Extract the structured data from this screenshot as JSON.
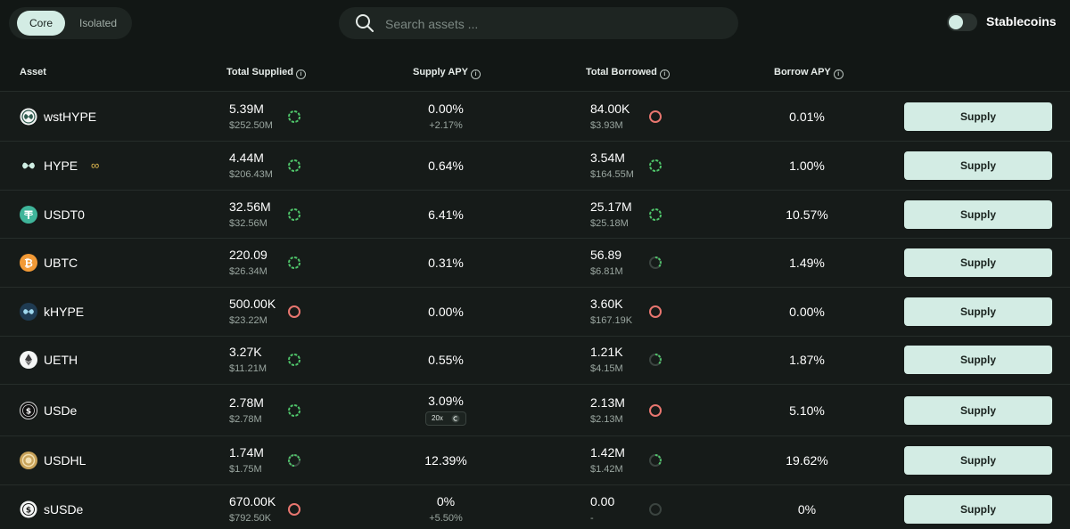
{
  "tabs": {
    "core": "Core",
    "isolated": "Isolated"
  },
  "search": {
    "placeholder": "Search assets ..."
  },
  "stablecoins_label": "Stablecoins",
  "columns": {
    "asset": "Asset",
    "total_supplied": "Total Supplied",
    "supply_apy": "Supply APY",
    "total_borrowed": "Total Borrowed",
    "borrow_apy": "Borrow APY"
  },
  "info_glyph": "i",
  "rows": [
    {
      "name": "wstHYPE",
      "supplied": "5.39M",
      "supplied_usd": "$252.50M",
      "supply_apy": "0.00%",
      "supply_apy_extra": "+2.17%",
      "borrowed": "84.00K",
      "borrowed_usd": "$3.93M",
      "borrow_apy": "0.01%",
      "button": "Supply",
      "supply_status": "green-full",
      "borrow_status": "red"
    },
    {
      "name": "HYPE",
      "loop_glyph": "∞",
      "supplied": "4.44M",
      "supplied_usd": "$206.43M",
      "supply_apy": "0.64%",
      "borrowed": "3.54M",
      "borrowed_usd": "$164.55M",
      "borrow_apy": "1.00%",
      "button": "Supply",
      "supply_status": "green-full",
      "borrow_status": "green-full"
    },
    {
      "name": "USDT0",
      "supplied": "32.56M",
      "supplied_usd": "$32.56M",
      "supply_apy": "6.41%",
      "borrowed": "25.17M",
      "borrowed_usd": "$25.18M",
      "borrow_apy": "10.57%",
      "button": "Supply",
      "supply_status": "green-full",
      "borrow_status": "green-full"
    },
    {
      "name": "UBTC",
      "supplied": "220.09",
      "supplied_usd": "$26.34M",
      "supply_apy": "0.31%",
      "borrowed": "56.89",
      "borrowed_usd": "$6.81M",
      "borrow_apy": "1.49%",
      "button": "Supply",
      "supply_status": "green-full",
      "borrow_status": "green-partial"
    },
    {
      "name": "kHYPE",
      "supplied": "500.00K",
      "supplied_usd": "$23.22M",
      "supply_apy": "0.00%",
      "borrowed": "3.60K",
      "borrowed_usd": "$167.19K",
      "borrow_apy": "0.00%",
      "button": "Supply",
      "supply_status": "red",
      "borrow_status": "red"
    },
    {
      "name": "UETH",
      "supplied": "3.27K",
      "supplied_usd": "$11.21M",
      "supply_apy": "0.55%",
      "borrowed": "1.21K",
      "borrowed_usd": "$4.15M",
      "borrow_apy": "1.87%",
      "button": "Supply",
      "supply_status": "green-full",
      "borrow_status": "green-partial"
    },
    {
      "name": "USDe",
      "supplied": "2.78M",
      "supplied_usd": "$2.78M",
      "supply_apy": "3.09%",
      "supply_tag": "20x",
      "borrowed": "2.13M",
      "borrowed_usd": "$2.13M",
      "borrow_apy": "5.10%",
      "button": "Supply",
      "supply_status": "green-full",
      "borrow_status": "red"
    },
    {
      "name": "USDHL",
      "supplied": "1.74M",
      "supplied_usd": "$1.75M",
      "supply_apy": "12.39%",
      "borrowed": "1.42M",
      "borrowed_usd": "$1.42M",
      "borrow_apy": "19.62%",
      "button": "Supply",
      "supply_status": "green-partial",
      "borrow_status": "green-partial"
    },
    {
      "name": "sUSDe",
      "supplied": "670.00K",
      "supplied_usd": "$792.50K",
      "supply_apy": "0%",
      "supply_apy_extra": "+5.50%",
      "borrowed": "0.00",
      "borrowed_usd": "-",
      "borrow_apy": "0%",
      "button": "Supply",
      "supply_status": "red",
      "borrow_status": "empty"
    }
  ],
  "colors": {
    "accent": "#d3ece4",
    "green": "#4fc46a",
    "red": "#e8766f",
    "empty": "#3b4440"
  }
}
